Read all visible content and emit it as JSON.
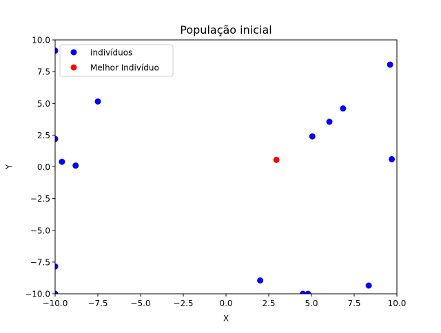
{
  "chart_data": {
    "type": "scatter",
    "title": "População inicial",
    "xlabel": "X",
    "ylabel": "Y",
    "xlim": [
      -10,
      10
    ],
    "ylim": [
      -10,
      10
    ],
    "xticks": [
      -10,
      -7.5,
      -5,
      -2.5,
      0,
      2.5,
      5,
      7.5,
      10
    ],
    "xtick_labels": [
      "−10.0",
      "−7.5",
      "−5.0",
      "−2.5",
      "0.0",
      "2.5",
      "5.0",
      "7.5",
      "10.0"
    ],
    "yticks": [
      -10,
      -7.5,
      -5,
      -2.5,
      0,
      2.5,
      5,
      7.5,
      10
    ],
    "ytick_labels": [
      "−10.0",
      "−7.5",
      "−5.0",
      "−2.5",
      "0.0",
      "2.5",
      "5.0",
      "7.5",
      "10.0"
    ],
    "grid": false,
    "legend_position": "top-left",
    "series": [
      {
        "name": "Indivíduos",
        "color": "#0000ff",
        "points": [
          [
            -10.0,
            9.15
          ],
          [
            -7.5,
            5.15
          ],
          [
            -10.0,
            2.2
          ],
          [
            -9.6,
            0.4
          ],
          [
            -8.8,
            0.1
          ],
          [
            -10.0,
            -7.85
          ],
          [
            -10.0,
            -10.0
          ],
          [
            2.0,
            -8.95
          ],
          [
            4.5,
            -10.0
          ],
          [
            4.8,
            -10.0
          ],
          [
            5.05,
            2.4
          ],
          [
            6.05,
            3.55
          ],
          [
            6.85,
            4.6
          ],
          [
            8.35,
            -9.35
          ],
          [
            9.6,
            8.05
          ],
          [
            9.7,
            0.6
          ]
        ]
      },
      {
        "name": "Melhor Indivíduo",
        "color": "#ff0000",
        "points": [
          [
            2.95,
            0.55
          ]
        ]
      }
    ]
  }
}
